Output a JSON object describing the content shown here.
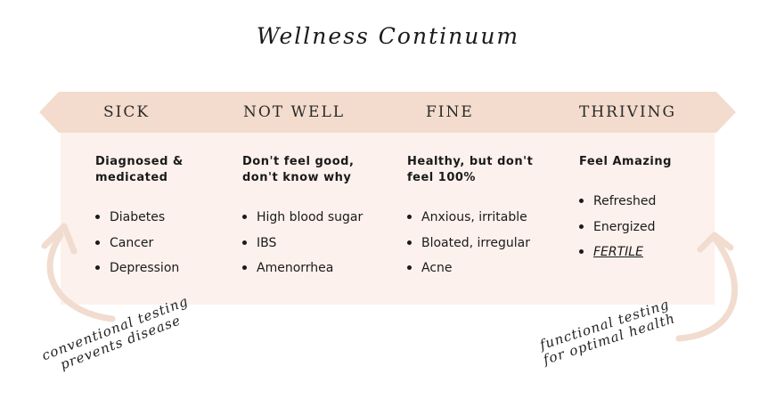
{
  "title": "Wellness Continuum",
  "colors": {
    "bar_fill": "#f3dccd",
    "panel_fill": "#fcf1ec",
    "arrow_stroke": "#f1dccf",
    "text": "#1a1a1a"
  },
  "stages": [
    {
      "label": "SICK",
      "heading": [
        "Diagnosed &",
        "medicated"
      ],
      "items": [
        "Diabetes",
        "Cancer",
        "Depression"
      ]
    },
    {
      "label": "NOT WELL",
      "heading": [
        "Don't feel good,",
        "don't know why"
      ],
      "items": [
        "High blood sugar",
        "IBS",
        "Amenorrhea"
      ]
    },
    {
      "label": "FINE",
      "heading": [
        "Healthy, but don't",
        "feel 100%"
      ],
      "items": [
        "Anxious, irritable",
        "Bloated, irregular",
        "Acne"
      ]
    },
    {
      "label": "THRIVING",
      "heading": [
        "Feel Amazing"
      ],
      "items": [
        "Refreshed",
        "Energized",
        "FERTILE"
      ]
    }
  ],
  "annotations": {
    "left": [
      "conventional testing",
      "prevents disease"
    ],
    "right": [
      "functional testing",
      "for optimal health"
    ]
  }
}
